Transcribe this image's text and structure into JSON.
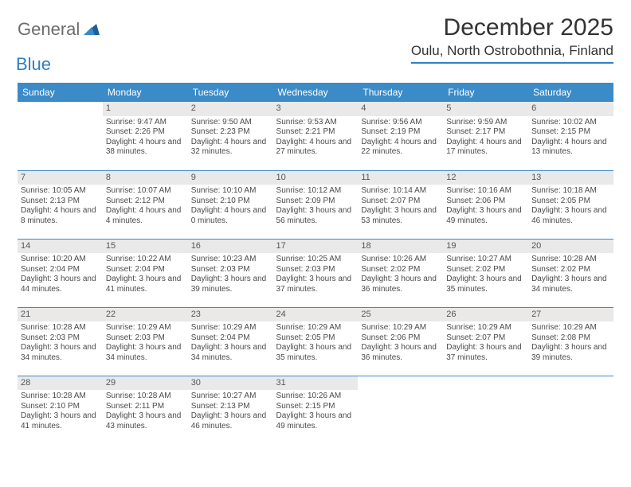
{
  "brand": {
    "word1": "General",
    "word2": "Blue"
  },
  "title": "December 2025",
  "location": "Oulu, North Ostrobothnia, Finland",
  "colors": {
    "header_bg": "#3b8bc8",
    "header_text": "#ffffff",
    "daynum_bg": "#e9e9e9",
    "rule": "#2f7fc2",
    "brand_gray": "#6b6b6b",
    "brand_blue": "#2f7fc2"
  },
  "weekdays": [
    "Sunday",
    "Monday",
    "Tuesday",
    "Wednesday",
    "Thursday",
    "Friday",
    "Saturday"
  ],
  "weeks": [
    [
      {
        "day": "",
        "sunrise": "",
        "sunset": "",
        "daylight": ""
      },
      {
        "day": "1",
        "sunrise": "Sunrise: 9:47 AM",
        "sunset": "Sunset: 2:26 PM",
        "daylight": "Daylight: 4 hours and 38 minutes."
      },
      {
        "day": "2",
        "sunrise": "Sunrise: 9:50 AM",
        "sunset": "Sunset: 2:23 PM",
        "daylight": "Daylight: 4 hours and 32 minutes."
      },
      {
        "day": "3",
        "sunrise": "Sunrise: 9:53 AM",
        "sunset": "Sunset: 2:21 PM",
        "daylight": "Daylight: 4 hours and 27 minutes."
      },
      {
        "day": "4",
        "sunrise": "Sunrise: 9:56 AM",
        "sunset": "Sunset: 2:19 PM",
        "daylight": "Daylight: 4 hours and 22 minutes."
      },
      {
        "day": "5",
        "sunrise": "Sunrise: 9:59 AM",
        "sunset": "Sunset: 2:17 PM",
        "daylight": "Daylight: 4 hours and 17 minutes."
      },
      {
        "day": "6",
        "sunrise": "Sunrise: 10:02 AM",
        "sunset": "Sunset: 2:15 PM",
        "daylight": "Daylight: 4 hours and 13 minutes."
      }
    ],
    [
      {
        "day": "7",
        "sunrise": "Sunrise: 10:05 AM",
        "sunset": "Sunset: 2:13 PM",
        "daylight": "Daylight: 4 hours and 8 minutes."
      },
      {
        "day": "8",
        "sunrise": "Sunrise: 10:07 AM",
        "sunset": "Sunset: 2:12 PM",
        "daylight": "Daylight: 4 hours and 4 minutes."
      },
      {
        "day": "9",
        "sunrise": "Sunrise: 10:10 AM",
        "sunset": "Sunset: 2:10 PM",
        "daylight": "Daylight: 4 hours and 0 minutes."
      },
      {
        "day": "10",
        "sunrise": "Sunrise: 10:12 AM",
        "sunset": "Sunset: 2:09 PM",
        "daylight": "Daylight: 3 hours and 56 minutes."
      },
      {
        "day": "11",
        "sunrise": "Sunrise: 10:14 AM",
        "sunset": "Sunset: 2:07 PM",
        "daylight": "Daylight: 3 hours and 53 minutes."
      },
      {
        "day": "12",
        "sunrise": "Sunrise: 10:16 AM",
        "sunset": "Sunset: 2:06 PM",
        "daylight": "Daylight: 3 hours and 49 minutes."
      },
      {
        "day": "13",
        "sunrise": "Sunrise: 10:18 AM",
        "sunset": "Sunset: 2:05 PM",
        "daylight": "Daylight: 3 hours and 46 minutes."
      }
    ],
    [
      {
        "day": "14",
        "sunrise": "Sunrise: 10:20 AM",
        "sunset": "Sunset: 2:04 PM",
        "daylight": "Daylight: 3 hours and 44 minutes."
      },
      {
        "day": "15",
        "sunrise": "Sunrise: 10:22 AM",
        "sunset": "Sunset: 2:04 PM",
        "daylight": "Daylight: 3 hours and 41 minutes."
      },
      {
        "day": "16",
        "sunrise": "Sunrise: 10:23 AM",
        "sunset": "Sunset: 2:03 PM",
        "daylight": "Daylight: 3 hours and 39 minutes."
      },
      {
        "day": "17",
        "sunrise": "Sunrise: 10:25 AM",
        "sunset": "Sunset: 2:03 PM",
        "daylight": "Daylight: 3 hours and 37 minutes."
      },
      {
        "day": "18",
        "sunrise": "Sunrise: 10:26 AM",
        "sunset": "Sunset: 2:02 PM",
        "daylight": "Daylight: 3 hours and 36 minutes."
      },
      {
        "day": "19",
        "sunrise": "Sunrise: 10:27 AM",
        "sunset": "Sunset: 2:02 PM",
        "daylight": "Daylight: 3 hours and 35 minutes."
      },
      {
        "day": "20",
        "sunrise": "Sunrise: 10:28 AM",
        "sunset": "Sunset: 2:02 PM",
        "daylight": "Daylight: 3 hours and 34 minutes."
      }
    ],
    [
      {
        "day": "21",
        "sunrise": "Sunrise: 10:28 AM",
        "sunset": "Sunset: 2:03 PM",
        "daylight": "Daylight: 3 hours and 34 minutes."
      },
      {
        "day": "22",
        "sunrise": "Sunrise: 10:29 AM",
        "sunset": "Sunset: 2:03 PM",
        "daylight": "Daylight: 3 hours and 34 minutes."
      },
      {
        "day": "23",
        "sunrise": "Sunrise: 10:29 AM",
        "sunset": "Sunset: 2:04 PM",
        "daylight": "Daylight: 3 hours and 34 minutes."
      },
      {
        "day": "24",
        "sunrise": "Sunrise: 10:29 AM",
        "sunset": "Sunset: 2:05 PM",
        "daylight": "Daylight: 3 hours and 35 minutes."
      },
      {
        "day": "25",
        "sunrise": "Sunrise: 10:29 AM",
        "sunset": "Sunset: 2:06 PM",
        "daylight": "Daylight: 3 hours and 36 minutes."
      },
      {
        "day": "26",
        "sunrise": "Sunrise: 10:29 AM",
        "sunset": "Sunset: 2:07 PM",
        "daylight": "Daylight: 3 hours and 37 minutes."
      },
      {
        "day": "27",
        "sunrise": "Sunrise: 10:29 AM",
        "sunset": "Sunset: 2:08 PM",
        "daylight": "Daylight: 3 hours and 39 minutes."
      }
    ],
    [
      {
        "day": "28",
        "sunrise": "Sunrise: 10:28 AM",
        "sunset": "Sunset: 2:10 PM",
        "daylight": "Daylight: 3 hours and 41 minutes."
      },
      {
        "day": "29",
        "sunrise": "Sunrise: 10:28 AM",
        "sunset": "Sunset: 2:11 PM",
        "daylight": "Daylight: 3 hours and 43 minutes."
      },
      {
        "day": "30",
        "sunrise": "Sunrise: 10:27 AM",
        "sunset": "Sunset: 2:13 PM",
        "daylight": "Daylight: 3 hours and 46 minutes."
      },
      {
        "day": "31",
        "sunrise": "Sunrise: 10:26 AM",
        "sunset": "Sunset: 2:15 PM",
        "daylight": "Daylight: 3 hours and 49 minutes."
      },
      {
        "day": "",
        "sunrise": "",
        "sunset": "",
        "daylight": ""
      },
      {
        "day": "",
        "sunrise": "",
        "sunset": "",
        "daylight": ""
      },
      {
        "day": "",
        "sunrise": "",
        "sunset": "",
        "daylight": ""
      }
    ]
  ]
}
